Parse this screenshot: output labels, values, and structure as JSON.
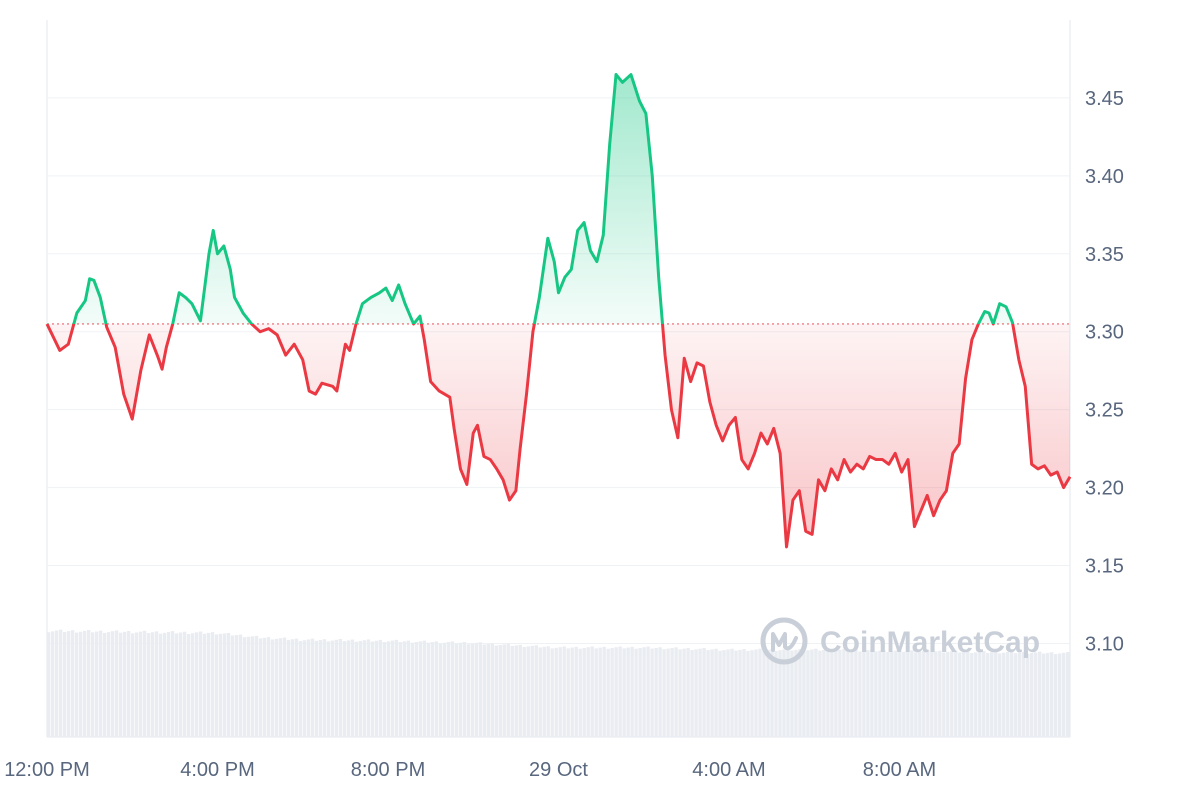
{
  "chart_data": {
    "type": "area",
    "title": "",
    "xlabel": "",
    "ylabel": "",
    "reference_price": 3.305,
    "ylim": [
      3.04,
      3.5
    ],
    "y_ticks": [
      3.1,
      3.15,
      3.2,
      3.25,
      3.3,
      3.35,
      3.4,
      3.45
    ],
    "y_tick_labels": [
      "3.10",
      "3.15",
      "3.20",
      "3.25",
      "3.30",
      "3.35",
      "3.40",
      "3.45"
    ],
    "x_range_hours": [
      0,
      24
    ],
    "x_ticks": [
      {
        "label": "12:00 PM",
        "hour": 0
      },
      {
        "label": "4:00 PM",
        "hour": 4
      },
      {
        "label": "8:00 PM",
        "hour": 8
      },
      {
        "label": "29 Oct",
        "hour": 12
      },
      {
        "label": "4:00 AM",
        "hour": 16
      },
      {
        "label": "8:00 AM",
        "hour": 20
      }
    ],
    "grid": true,
    "colors": {
      "up": "#16c784",
      "down": "#ea3943",
      "grid": "#eff2f5",
      "volume": "#e9ecf1",
      "axis_text": "#58667e"
    },
    "series": [
      {
        "points": [
          [
            0.0,
            3.305
          ],
          [
            0.3,
            3.288
          ],
          [
            0.5,
            3.292
          ],
          [
            0.7,
            3.312
          ],
          [
            0.9,
            3.32
          ],
          [
            1.0,
            3.334
          ],
          [
            1.1,
            3.333
          ],
          [
            1.25,
            3.322
          ],
          [
            1.4,
            3.303
          ],
          [
            1.6,
            3.29
          ],
          [
            1.8,
            3.26
          ],
          [
            1.9,
            3.252
          ],
          [
            2.0,
            3.244
          ],
          [
            2.2,
            3.275
          ],
          [
            2.4,
            3.298
          ],
          [
            2.6,
            3.284
          ],
          [
            2.7,
            3.276
          ],
          [
            2.8,
            3.29
          ],
          [
            2.95,
            3.305
          ],
          [
            3.1,
            3.325
          ],
          [
            3.25,
            3.322
          ],
          [
            3.4,
            3.318
          ],
          [
            3.6,
            3.307
          ],
          [
            3.8,
            3.35
          ],
          [
            3.9,
            3.365
          ],
          [
            4.0,
            3.35
          ],
          [
            4.15,
            3.355
          ],
          [
            4.3,
            3.34
          ],
          [
            4.4,
            3.322
          ],
          [
            4.6,
            3.312
          ],
          [
            4.8,
            3.305
          ],
          [
            5.0,
            3.3
          ],
          [
            5.2,
            3.302
          ],
          [
            5.4,
            3.298
          ],
          [
            5.6,
            3.285
          ],
          [
            5.8,
            3.292
          ],
          [
            6.0,
            3.282
          ],
          [
            6.15,
            3.262
          ],
          [
            6.3,
            3.26
          ],
          [
            6.45,
            3.267
          ],
          [
            6.7,
            3.265
          ],
          [
            6.8,
            3.262
          ],
          [
            7.0,
            3.292
          ],
          [
            7.1,
            3.288
          ],
          [
            7.25,
            3.305
          ],
          [
            7.4,
            3.318
          ],
          [
            7.6,
            3.322
          ],
          [
            7.8,
            3.325
          ],
          [
            7.95,
            3.328
          ],
          [
            8.1,
            3.32
          ],
          [
            8.25,
            3.33
          ],
          [
            8.4,
            3.318
          ],
          [
            8.6,
            3.305
          ],
          [
            8.75,
            3.31
          ],
          [
            8.85,
            3.295
          ],
          [
            9.0,
            3.268
          ],
          [
            9.2,
            3.262
          ],
          [
            9.45,
            3.258
          ],
          [
            9.55,
            3.238
          ],
          [
            9.7,
            3.212
          ],
          [
            9.85,
            3.202
          ],
          [
            10.0,
            3.235
          ],
          [
            10.1,
            3.24
          ],
          [
            10.25,
            3.22
          ],
          [
            10.4,
            3.218
          ],
          [
            10.55,
            3.212
          ],
          [
            10.7,
            3.205
          ],
          [
            10.85,
            3.192
          ],
          [
            11.0,
            3.198
          ],
          [
            11.1,
            3.225
          ],
          [
            11.25,
            3.26
          ],
          [
            11.4,
            3.3
          ],
          [
            11.55,
            3.322
          ],
          [
            11.75,
            3.36
          ],
          [
            11.9,
            3.345
          ],
          [
            12.0,
            3.325
          ],
          [
            12.15,
            3.335
          ],
          [
            12.3,
            3.34
          ],
          [
            12.45,
            3.365
          ],
          [
            12.6,
            3.37
          ],
          [
            12.75,
            3.352
          ],
          [
            12.9,
            3.345
          ],
          [
            13.05,
            3.362
          ],
          [
            13.2,
            3.42
          ],
          [
            13.35,
            3.465
          ],
          [
            13.5,
            3.46
          ],
          [
            13.7,
            3.465
          ],
          [
            13.9,
            3.448
          ],
          [
            14.05,
            3.44
          ],
          [
            14.2,
            3.4
          ],
          [
            14.35,
            3.335
          ],
          [
            14.5,
            3.285
          ],
          [
            14.65,
            3.25
          ],
          [
            14.8,
            3.232
          ],
          [
            14.95,
            3.283
          ],
          [
            15.1,
            3.268
          ],
          [
            15.25,
            3.28
          ],
          [
            15.4,
            3.278
          ],
          [
            15.55,
            3.255
          ],
          [
            15.7,
            3.24
          ],
          [
            15.85,
            3.23
          ],
          [
            16.0,
            3.24
          ],
          [
            16.15,
            3.245
          ],
          [
            16.3,
            3.218
          ],
          [
            16.45,
            3.212
          ],
          [
            16.6,
            3.222
          ],
          [
            16.75,
            3.235
          ],
          [
            16.9,
            3.228
          ],
          [
            17.05,
            3.238
          ],
          [
            17.2,
            3.222
          ],
          [
            17.35,
            3.162
          ],
          [
            17.5,
            3.192
          ],
          [
            17.65,
            3.198
          ],
          [
            17.8,
            3.172
          ],
          [
            17.95,
            3.17
          ],
          [
            18.1,
            3.205
          ],
          [
            18.25,
            3.198
          ],
          [
            18.4,
            3.212
          ],
          [
            18.55,
            3.205
          ],
          [
            18.7,
            3.218
          ],
          [
            18.85,
            3.21
          ],
          [
            19.0,
            3.215
          ],
          [
            19.15,
            3.212
          ],
          [
            19.3,
            3.22
          ],
          [
            19.45,
            3.218
          ],
          [
            19.6,
            3.218
          ],
          [
            19.75,
            3.215
          ],
          [
            19.9,
            3.222
          ],
          [
            20.05,
            3.21
          ],
          [
            20.2,
            3.218
          ],
          [
            20.35,
            3.175
          ],
          [
            20.5,
            3.185
          ],
          [
            20.65,
            3.195
          ],
          [
            20.8,
            3.182
          ],
          [
            20.95,
            3.192
          ],
          [
            21.1,
            3.198
          ],
          [
            21.25,
            3.222
          ],
          [
            21.4,
            3.228
          ],
          [
            21.55,
            3.27
          ],
          [
            21.7,
            3.295
          ],
          [
            21.85,
            3.305
          ],
          [
            22.0,
            3.313
          ],
          [
            22.1,
            3.312
          ],
          [
            22.2,
            3.305
          ],
          [
            22.35,
            3.318
          ],
          [
            22.5,
            3.316
          ],
          [
            22.65,
            3.306
          ],
          [
            22.8,
            3.282
          ],
          [
            22.95,
            3.265
          ],
          [
            23.1,
            3.215
          ],
          [
            23.25,
            3.212
          ],
          [
            23.4,
            3.214
          ],
          [
            23.55,
            3.208
          ],
          [
            23.7,
            3.21
          ],
          [
            23.85,
            3.2
          ],
          [
            24.0,
            3.207
          ]
        ]
      }
    ],
    "volume": [
      [
        0,
        0.95
      ],
      [
        2,
        0.94
      ],
      [
        4,
        0.93
      ],
      [
        5,
        0.89
      ],
      [
        6,
        0.87
      ],
      [
        8,
        0.86
      ],
      [
        10,
        0.84
      ],
      [
        12,
        0.8
      ],
      [
        14,
        0.8
      ],
      [
        16,
        0.78
      ],
      [
        18,
        0.78
      ],
      [
        20,
        0.77
      ],
      [
        22,
        0.76
      ],
      [
        24,
        0.75
      ]
    ]
  },
  "watermark": {
    "text": "CoinMarketCap"
  }
}
